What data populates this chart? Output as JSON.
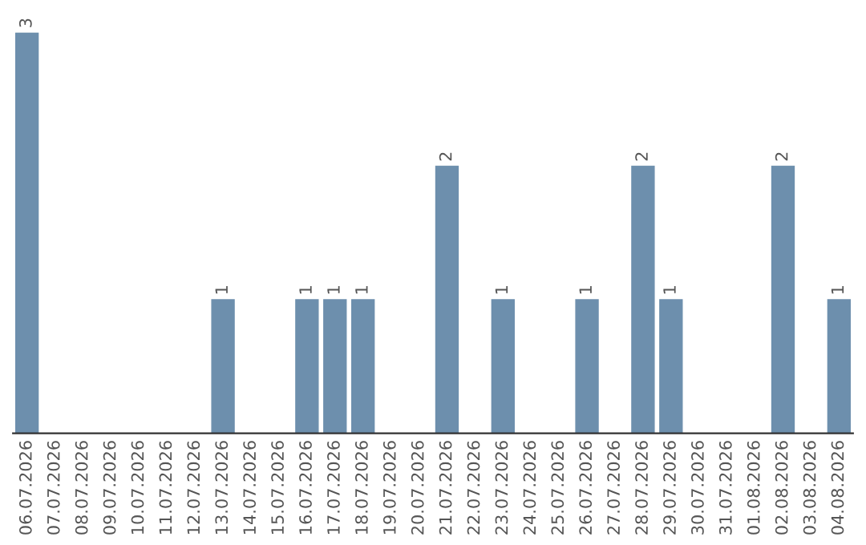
{
  "chart_data": {
    "type": "bar",
    "categories": [
      "06.07.2026",
      "07.07.2026",
      "08.07.2026",
      "09.07.2026",
      "10.07.2026",
      "11.07.2026",
      "12.07.2026",
      "13.07.2026",
      "14.07.2026",
      "15.07.2026",
      "16.07.2026",
      "17.07.2026",
      "18.07.2026",
      "19.07.2026",
      "20.07.2026",
      "21.07.2026",
      "22.07.2026",
      "23.07.2026",
      "24.07.2026",
      "25.07.2026",
      "26.07.2026",
      "27.07.2026",
      "28.07.2026",
      "29.07.2026",
      "30.07.2026",
      "31.07.2026",
      "01.08.2026",
      "02.08.2026",
      "03.08.2026",
      "04.08.2026"
    ],
    "values": [
      3,
      0,
      0,
      0,
      0,
      0,
      0,
      1,
      0,
      0,
      1,
      1,
      1,
      0,
      0,
      2,
      0,
      1,
      0,
      0,
      1,
      0,
      2,
      1,
      0,
      0,
      0,
      2,
      0,
      1
    ],
    "value_labels": [
      "3",
      null,
      null,
      null,
      null,
      null,
      null,
      "1",
      null,
      null,
      "1",
      "1",
      "1",
      null,
      null,
      "2",
      null,
      "1",
      null,
      null,
      "1",
      null,
      "2",
      "1",
      null,
      null,
      null,
      "2",
      null,
      "1"
    ],
    "color": "#6d8fad",
    "ylim": [
      0,
      3
    ],
    "tick_labels": "x",
    "grid": false,
    "legend": false
  }
}
